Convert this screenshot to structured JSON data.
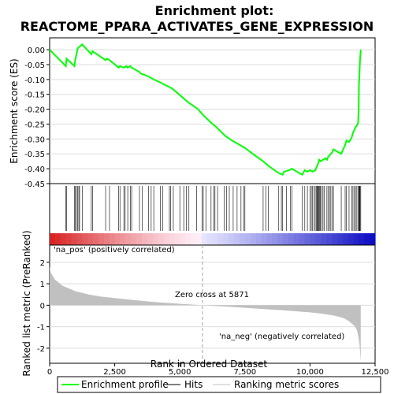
{
  "title_line1": "Enrichment plot:",
  "title_line2": "REACTOME_PPARA_ACTIVATES_GENE_EXPRESSION",
  "legend": {
    "enrichment_profile": "Enrichment profile",
    "hits": "Hits",
    "ranking_metric": "Ranking metric scores"
  },
  "annotations": {
    "pos_label": "'na_pos' (positively correlated)",
    "neg_label": "'na_neg' (negatively correlated)",
    "zero_cross": "Zero cross at 5871"
  },
  "colors": {
    "enrichment_line": "#00ff00",
    "hit_line": "#000000",
    "pos_label": "#cc0000",
    "neg_label": "#0000cc",
    "metric_fill": "#c0c0c0",
    "zero_cross_line": "#a0a0a0"
  },
  "chart_data": [
    {
      "type": "line",
      "name": "enrichment-score",
      "ylabel": "Enrichment score (ES)",
      "xlim": [
        0,
        12500
      ],
      "ylim": [
        -0.45,
        0.04
      ],
      "yticks": [
        0.0,
        -0.05,
        -0.1,
        -0.15,
        -0.2,
        -0.25,
        -0.3,
        -0.35,
        -0.4,
        -0.45
      ],
      "ytick_labels": [
        "0.00",
        "-0.05",
        "-0.10",
        "-0.15",
        "-0.20",
        "-0.25",
        "-0.30",
        "-0.35",
        "-0.40",
        "-0.45"
      ],
      "grid": true,
      "x": [
        0,
        620,
        650,
        950,
        980,
        1030,
        1080,
        1150,
        1250,
        1600,
        1650,
        2150,
        2200,
        2300,
        2650,
        2700,
        2850,
        2950,
        3000,
        3100,
        3150,
        3450,
        3500,
        3800,
        4000,
        4250,
        4700,
        4900,
        5300,
        5700,
        5900,
        6200,
        6400,
        6750,
        7000,
        7300,
        7500,
        7800,
        8200,
        8400,
        8800,
        8950,
        9000,
        9200,
        9300,
        9700,
        9800,
        9900,
        10000,
        10100,
        10200,
        10250,
        10300,
        10350,
        10400,
        10500,
        10600,
        10650,
        10700,
        10750,
        10800,
        10850,
        10900,
        11200,
        11350,
        11400,
        11500,
        11600,
        11650,
        11700,
        11750,
        11800,
        11850,
        11870,
        11880,
        11900,
        11920,
        11950
      ],
      "y": [
        0.0,
        -0.055,
        -0.03,
        -0.055,
        -0.035,
        -0.015,
        0.005,
        0.01,
        0.018,
        -0.015,
        -0.005,
        -0.035,
        -0.03,
        -0.035,
        -0.06,
        -0.055,
        -0.06,
        -0.055,
        -0.06,
        -0.055,
        -0.06,
        -0.075,
        -0.08,
        -0.09,
        -0.1,
        -0.11,
        -0.13,
        -0.145,
        -0.175,
        -0.2,
        -0.22,
        -0.245,
        -0.26,
        -0.29,
        -0.305,
        -0.32,
        -0.33,
        -0.35,
        -0.375,
        -0.39,
        -0.415,
        -0.42,
        -0.41,
        -0.405,
        -0.4,
        -0.42,
        -0.405,
        -0.41,
        -0.405,
        -0.41,
        -0.405,
        -0.395,
        -0.385,
        -0.37,
        -0.375,
        -0.37,
        -0.365,
        -0.37,
        -0.36,
        -0.355,
        -0.35,
        -0.345,
        -0.335,
        -0.35,
        -0.32,
        -0.305,
        -0.31,
        -0.295,
        -0.28,
        -0.27,
        -0.26,
        -0.255,
        -0.245,
        -0.2,
        -0.12,
        -0.08,
        -0.04,
        0.0
      ]
    },
    {
      "type": "scatter",
      "name": "hits",
      "xlim": [
        0,
        12500
      ],
      "x": [
        620,
        650,
        950,
        980,
        1030,
        1080,
        1120,
        1150,
        1250,
        1600,
        1650,
        2150,
        2300,
        2650,
        2700,
        2850,
        2900,
        3000,
        3100,
        3150,
        3450,
        3550,
        3800,
        3900,
        4000,
        4250,
        4350,
        4600,
        4650,
        4750,
        5000,
        5150,
        5250,
        5350,
        5650,
        5850,
        5900,
        6000,
        6200,
        6300,
        6350,
        6450,
        6700,
        6800,
        6900,
        7050,
        7200,
        7350,
        7450,
        7500,
        8200,
        8300,
        8400,
        8800,
        8900,
        8950,
        9100,
        9250,
        9300,
        9700,
        9800,
        9900,
        10000,
        10050,
        10100,
        10150,
        10200,
        10250,
        10270,
        10300,
        10320,
        10350,
        10380,
        10400,
        10450,
        10500,
        10550,
        10650,
        10700,
        10750,
        10800,
        10850,
        10900,
        11200,
        11350,
        11400,
        11500,
        11600,
        11650,
        11700,
        11750,
        11800,
        11850,
        11880,
        11900,
        11920,
        11950
      ]
    },
    {
      "type": "area",
      "name": "ranked-list-metric",
      "xlabel": "Rank in Ordered Dataset",
      "ylabel": "Ranked list metric (PreRanked)",
      "xlim": [
        0,
        12500
      ],
      "ylim": [
        -2.7,
        2.8
      ],
      "xticks": [
        0,
        2500,
        5000,
        7500,
        10000,
        12500
      ],
      "xtick_labels": [
        "0",
        "2,500",
        "5,000",
        "7,500",
        "10,000",
        "12,500"
      ],
      "yticks": [
        2,
        1,
        0,
        -1,
        -2
      ],
      "ytick_labels": [
        "2",
        "1",
        "0",
        "-1",
        "-2"
      ],
      "zero_cross": 5871,
      "x": [
        0,
        50,
        200,
        500,
        1000,
        1500,
        2000,
        3000,
        4000,
        5000,
        5871,
        7000,
        8000,
        9000,
        10000,
        10500,
        11000,
        11300,
        11500,
        11700,
        11800,
        11850,
        11900,
        11950
      ],
      "y": [
        1.8,
        1.5,
        1.2,
        0.9,
        0.65,
        0.5,
        0.4,
        0.27,
        0.15,
        0.07,
        0.0,
        -0.08,
        -0.16,
        -0.24,
        -0.33,
        -0.4,
        -0.5,
        -0.6,
        -0.75,
        -0.95,
        -1.15,
        -1.4,
        -1.8,
        -2.6
      ]
    }
  ]
}
